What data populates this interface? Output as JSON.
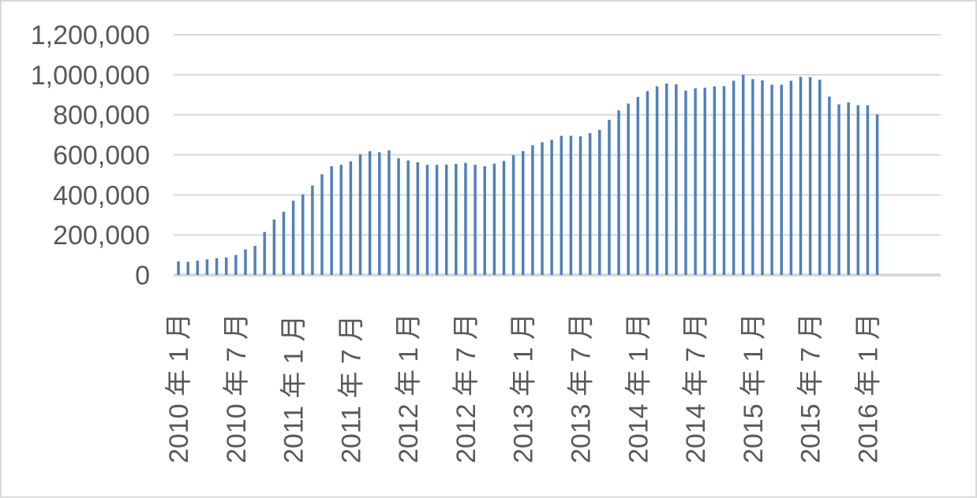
{
  "chart_data": {
    "type": "bar",
    "title": "",
    "xlabel": "",
    "ylabel": "",
    "ylim": [
      0,
      1200000
    ],
    "yticks": [
      0,
      200000,
      400000,
      600000,
      800000,
      1000000,
      1200000
    ],
    "ytick_labels": [
      "0",
      "200,000",
      "400,000",
      "600,000",
      "800,000",
      "1,000,000",
      "1,200,000"
    ],
    "grid": true,
    "legend": "none",
    "bar_color": "#4f81bd",
    "grid_color": "#d9d9d9",
    "axis_color": "#d9d9d9",
    "x_tick_labels": [
      {
        "index": 0,
        "label": "2010 年 1 月"
      },
      {
        "index": 6,
        "label": "2010 年 7 月"
      },
      {
        "index": 12,
        "label": "2011 年 1 月"
      },
      {
        "index": 18,
        "label": "2011 年 7 月"
      },
      {
        "index": 24,
        "label": "2012 年 1 月"
      },
      {
        "index": 30,
        "label": "2012 年 7 月"
      },
      {
        "index": 36,
        "label": "2013 年 1 月"
      },
      {
        "index": 42,
        "label": "2013 年 7 月"
      },
      {
        "index": 48,
        "label": "2014 年 1 月"
      },
      {
        "index": 54,
        "label": "2014 年 7 月"
      },
      {
        "index": 60,
        "label": "2015 年 1 月"
      },
      {
        "index": 66,
        "label": "2015 年 7 月"
      },
      {
        "index": 72,
        "label": "2016 年 1 月"
      }
    ],
    "values": [
      68000,
      66000,
      72000,
      78000,
      84000,
      88000,
      100000,
      128000,
      145000,
      215000,
      277000,
      316000,
      371000,
      403000,
      447000,
      503000,
      543000,
      550000,
      568000,
      603000,
      618000,
      613000,
      622000,
      583000,
      572000,
      563000,
      550000,
      550000,
      551000,
      555000,
      560000,
      550000,
      543000,
      556000,
      570000,
      599000,
      619000,
      648000,
      663000,
      675000,
      695000,
      695000,
      693000,
      708000,
      725000,
      775000,
      822000,
      856000,
      889000,
      918000,
      942000,
      956000,
      952000,
      920000,
      932000,
      935000,
      942000,
      943000,
      970000,
      1000000,
      978000,
      972000,
      950000,
      950000,
      970000,
      990000,
      988000,
      975000,
      891000,
      852000,
      862000,
      848000,
      848000,
      802000
    ]
  }
}
